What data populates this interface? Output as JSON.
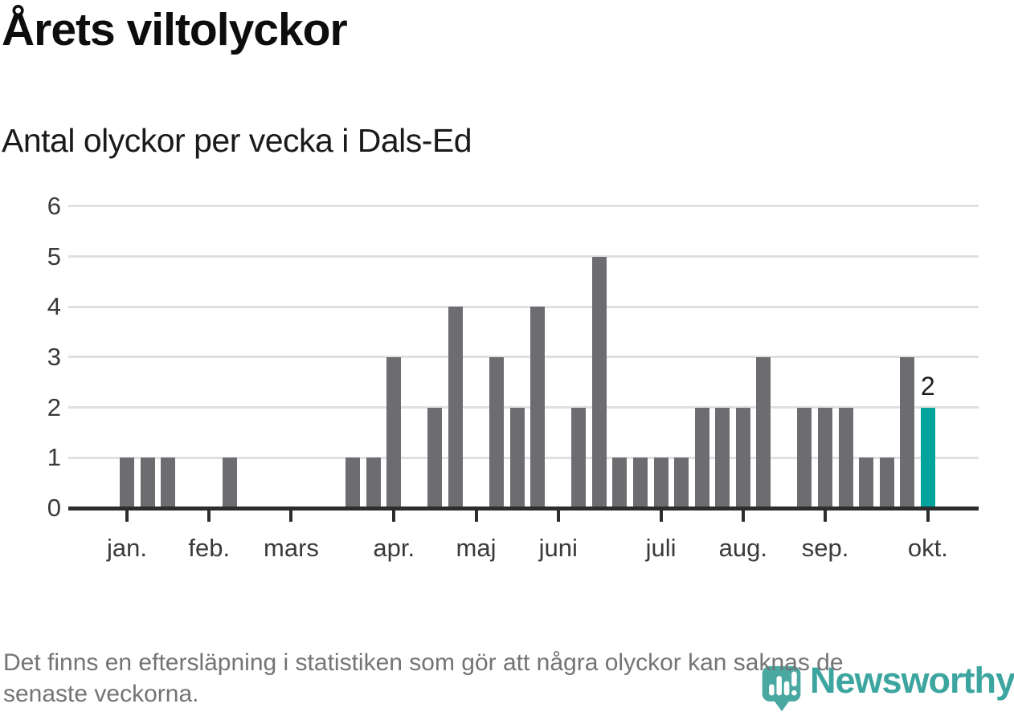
{
  "header": {
    "title": "Årets viltolyckor",
    "subtitle": "Antal olyckor per vecka i Dals-Ed"
  },
  "chart_data": {
    "type": "bar",
    "title": "Årets viltolyckor",
    "subtitle": "Antal olyckor per vecka i Dals-Ed",
    "x_unit": "vecka (week of year)",
    "ylabel": "",
    "xlabel": "",
    "grid": true,
    "ylim": [
      0,
      6
    ],
    "y_ticks": [
      0,
      1,
      2,
      3,
      4,
      5,
      6
    ],
    "weeks": [
      1,
      2,
      3,
      4,
      5,
      6,
      7,
      8,
      9,
      10,
      11,
      12,
      13,
      14,
      15,
      16,
      17,
      18,
      19,
      20,
      21,
      22,
      23,
      24,
      25,
      26,
      27,
      28,
      29,
      30,
      31,
      32,
      33,
      34,
      35,
      36,
      37,
      38,
      39,
      40
    ],
    "values": [
      1,
      1,
      1,
      0,
      0,
      1,
      0,
      0,
      0,
      0,
      0,
      1,
      1,
      3,
      0,
      2,
      4,
      0,
      3,
      2,
      4,
      0,
      2,
      5,
      1,
      1,
      1,
      1,
      2,
      2,
      2,
      3,
      0,
      2,
      2,
      2,
      1,
      1,
      3,
      2
    ],
    "month_ticks": [
      {
        "label": "jan.",
        "week": 1
      },
      {
        "label": "feb.",
        "week": 5
      },
      {
        "label": "mars",
        "week": 9
      },
      {
        "label": "apr.",
        "week": 14
      },
      {
        "label": "maj",
        "week": 18
      },
      {
        "label": "juni",
        "week": 22
      },
      {
        "label": "juli",
        "week": 27
      },
      {
        "label": "aug.",
        "week": 31
      },
      {
        "label": "sep.",
        "week": 35
      },
      {
        "label": "okt.",
        "week": 40
      }
    ],
    "highlight": {
      "week": 40,
      "value": 2,
      "label": "2"
    },
    "colors": {
      "bar": "#6d6c70",
      "highlight": "#00a49c",
      "grid": "#e0e0e0",
      "axis": "#2d2d2d",
      "tick_label": "#3a3a3a",
      "value_label": "#1c1c1c"
    }
  },
  "footer": {
    "note_lines": [
      "Det finns en eftersläpning i statistiken som gör att några olyckor kan saknas de",
      "senaste veckorna."
    ],
    "brand": {
      "name": "Newsworthy",
      "icon": "newsworthy-speech-bubble-bar-chart-icon",
      "colors": {
        "icon": "#4aa8a2",
        "wordmark": "#3ca59f"
      }
    }
  }
}
